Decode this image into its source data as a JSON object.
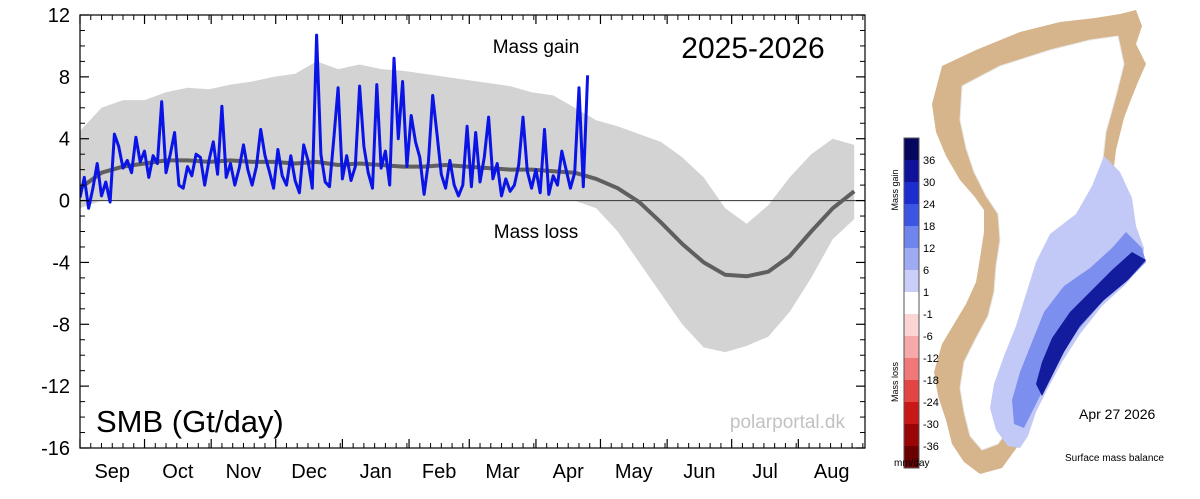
{
  "chart_data": {
    "type": "line",
    "title": "2025-2026",
    "ylabel": "SMB (Gt/day)",
    "ylim": [
      -16,
      12
    ],
    "yticks": [
      12,
      8,
      4,
      0,
      -4,
      -8,
      -12,
      -16
    ],
    "month_labels": [
      "Sep",
      "Oct",
      "Nov",
      "Dec",
      "Jan",
      "Feb",
      "Mar",
      "Apr",
      "May",
      "Jun",
      "Jul",
      "Aug"
    ],
    "annotations": {
      "gain": "Mass gain",
      "loss": "Mass loss"
    },
    "watermark": "polarportal.dk",
    "grid": false,
    "colors": {
      "current": "#0a14e6",
      "mean": "#5f5f5f",
      "band": "#d3d3d3",
      "axis": "#000000"
    },
    "series": [
      {
        "key": "current",
        "day": [
          0,
          2,
          4,
          6,
          8,
          10,
          12,
          14,
          16,
          18,
          20,
          22,
          24,
          26,
          28,
          30,
          32,
          34,
          36,
          38,
          40,
          42,
          44,
          46,
          48,
          50,
          52,
          54,
          56,
          58,
          60,
          62,
          64,
          66,
          68,
          70,
          72,
          74,
          76,
          78,
          80,
          82,
          84,
          86,
          88,
          90,
          92,
          94,
          96,
          98,
          100,
          102,
          104,
          106,
          108,
          110,
          112,
          114,
          116,
          118,
          120,
          122,
          124,
          126,
          128,
          130,
          132,
          134,
          136,
          138,
          140,
          142,
          144,
          146,
          148,
          150,
          152,
          154,
          156,
          158,
          160,
          162,
          164,
          166,
          168,
          170,
          172,
          174,
          176,
          178,
          180,
          182,
          184,
          186,
          188,
          190,
          192,
          194,
          196,
          198,
          200,
          202,
          204,
          206,
          208,
          210,
          212,
          214,
          216,
          218,
          220,
          222,
          224,
          226,
          228,
          230,
          232,
          234,
          236
        ],
        "values": [
          0.2,
          1.5,
          -0.5,
          0.8,
          2.4,
          0.3,
          1.2,
          -0.1,
          4.3,
          3.5,
          2.1,
          2.6,
          1.8,
          4.1,
          2.5,
          3.2,
          1.5,
          2.9,
          2.4,
          6.4,
          1.8,
          3.0,
          4.4,
          1.0,
          0.8,
          2.2,
          1.6,
          3.0,
          2.8,
          1.0,
          2.6,
          3.8,
          1.7,
          6.1,
          1.5,
          2.4,
          1.0,
          2.1,
          3.6,
          2.0,
          1.0,
          2.2,
          4.6,
          2.9,
          1.9,
          0.8,
          3.3,
          1.6,
          1.0,
          2.9,
          1.3,
          0.5,
          3.6,
          2.6,
          0.8,
          10.7,
          3.0,
          1.2,
          0.9,
          4.0,
          7.3,
          1.4,
          2.9,
          1.3,
          2.2,
          7.4,
          3.5,
          1.8,
          0.8,
          7.5,
          2.1,
          3.2,
          1.0,
          9.2,
          4.0,
          7.7,
          2.2,
          5.5,
          3.8,
          2.8,
          0.4,
          2.5,
          6.8,
          4.3,
          1.7,
          0.8,
          2.6,
          1.0,
          0.3,
          1.0,
          4.8,
          0.9,
          4.4,
          1.2,
          2.8,
          5.4,
          1.4,
          2.4,
          0.3,
          1.4,
          0.6,
          1.0,
          2.3,
          5.4,
          1.9,
          0.8,
          2.0,
          0.5,
          4.6,
          0.4,
          1.6,
          1.0,
          3.2,
          2.0,
          0.8,
          1.8,
          7.3,
          0.9,
          8.1
        ]
      },
      {
        "key": "mean",
        "day": [
          0,
          10,
          20,
          30,
          40,
          50,
          60,
          70,
          80,
          90,
          100,
          110,
          120,
          130,
          140,
          150,
          160,
          170,
          180,
          190,
          200,
          210,
          220,
          230,
          240,
          250,
          260,
          270,
          280,
          290,
          300,
          310,
          320,
          330,
          340,
          350,
          360
        ],
        "values": [
          0.8,
          1.8,
          2.2,
          2.4,
          2.6,
          2.6,
          2.5,
          2.6,
          2.5,
          2.5,
          2.4,
          2.5,
          2.3,
          2.4,
          2.3,
          2.2,
          2.2,
          2.3,
          2.2,
          2.1,
          2.0,
          2.0,
          1.9,
          1.8,
          1.4,
          0.8,
          -0.1,
          -1.4,
          -2.8,
          -4.0,
          -4.8,
          -4.9,
          -4.6,
          -3.6,
          -2.0,
          -0.5,
          0.6
        ]
      },
      {
        "key": "envelope",
        "day": [
          0,
          10,
          20,
          30,
          40,
          50,
          60,
          70,
          80,
          90,
          100,
          110,
          120,
          130,
          140,
          150,
          160,
          170,
          180,
          190,
          200,
          210,
          220,
          230,
          240,
          250,
          260,
          270,
          280,
          290,
          300,
          310,
          320,
          330,
          340,
          350,
          360
        ],
        "upper": [
          4.5,
          6.0,
          6.5,
          6.5,
          7.0,
          7.3,
          7.2,
          7.5,
          7.7,
          8.0,
          8.2,
          9.0,
          8.5,
          8.8,
          8.5,
          8.4,
          8.2,
          8.0,
          7.8,
          7.6,
          7.4,
          7.0,
          6.8,
          6.0,
          5.2,
          4.8,
          4.3,
          3.8,
          2.8,
          1.5,
          -0.5,
          -1.5,
          -0.3,
          1.5,
          3.0,
          4.0,
          3.6
        ],
        "lower": [
          -0.5,
          0.0,
          0.0,
          0.0,
          0.0,
          0.0,
          0.0,
          0.0,
          0.0,
          0.0,
          0.0,
          0.0,
          0.0,
          0.0,
          0.0,
          0.0,
          0.0,
          0.0,
          0.0,
          0.0,
          0.0,
          0.0,
          0.0,
          0.0,
          -0.5,
          -2.0,
          -4.0,
          -6.0,
          -8.0,
          -9.5,
          -9.8,
          -9.4,
          -8.8,
          -7.2,
          -5.0,
          -2.5,
          -1.2
        ]
      }
    ]
  },
  "map": {
    "date": "Apr 27 2026",
    "caption": "Surface mass balance",
    "colorbar": {
      "unit": "mm/day",
      "gain_label": "Mass gain",
      "loss_label": "Mass loss",
      "labels": [
        "36",
        "30",
        "24",
        "18",
        "12",
        "6",
        "1",
        "-1",
        "-6",
        "-12",
        "-18",
        "-24",
        "-30",
        "-36"
      ],
      "colors": [
        "#06065e",
        "#10129a",
        "#1d2ccc",
        "#3c55e2",
        "#6f84ec",
        "#9eabf3",
        "#c9cff9",
        "#ffffff",
        "#fbd4d4",
        "#f7a9a9",
        "#f07878",
        "#e34545",
        "#c91818",
        "#9a0606",
        "#6a0000"
      ]
    },
    "colors": {
      "land": "#d6b48c",
      "ice_edge": "#ffffff"
    }
  }
}
